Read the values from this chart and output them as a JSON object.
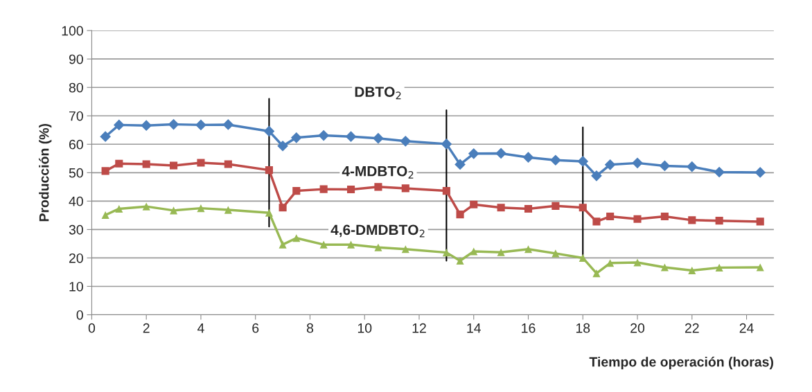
{
  "chart_data": {
    "type": "line",
    "xlabel": "Tiempo de operación (horas)",
    "ylabel": "Producción (%)",
    "x": [
      0.5,
      1,
      2,
      3,
      4,
      5,
      6.5,
      7,
      7.5,
      8.5,
      9.5,
      10.5,
      11.5,
      13,
      13.5,
      14,
      15,
      16,
      17,
      18,
      18.5,
      19,
      20,
      21,
      22,
      23,
      24.5
    ],
    "series": [
      {
        "name": "DBTO$_{2}$",
        "color": "#4a7ebb",
        "marker": "diamond",
        "values": [
          62.7,
          66.8,
          66.6,
          67.0,
          66.8,
          66.9,
          64.6,
          59.4,
          62.3,
          63.1,
          62.7,
          62.1,
          61.1,
          60.1,
          52.9,
          56.7,
          56.8,
          55.4,
          54.4,
          54.0,
          48.9,
          52.8,
          53.4,
          52.4,
          52.1,
          50.2,
          50.1
        ]
      },
      {
        "name": "4-MDBTO$_{2}$",
        "color": "#be4b48",
        "marker": "square",
        "values": [
          50.6,
          53.2,
          53.0,
          52.5,
          53.5,
          53.0,
          50.9,
          37.7,
          43.6,
          44.2,
          44.1,
          45.0,
          44.5,
          43.6,
          35.3,
          38.8,
          37.7,
          37.3,
          38.3,
          37.7,
          32.8,
          34.6,
          33.7,
          34.6,
          33.3,
          33.1,
          32.8
        ]
      },
      {
        "name": "4,6-DMDBTO$_{2}$",
        "color": "#98b954",
        "marker": "triangle",
        "values": [
          35.1,
          37.3,
          38.1,
          36.7,
          37.5,
          36.9,
          35.9,
          24.7,
          27.0,
          24.7,
          24.7,
          23.7,
          23.1,
          21.9,
          19.0,
          22.3,
          22.0,
          23.1,
          21.6,
          20.0,
          14.6,
          18.2,
          18.4,
          16.7,
          15.6,
          16.6,
          16.7
        ]
      }
    ],
    "ref_lines": [
      {
        "axis": "x",
        "value": 6.5,
        "color": "#000000"
      },
      {
        "axis": "x",
        "value": 13,
        "color": "#000000"
      },
      {
        "axis": "x",
        "value": 18,
        "color": "#000000"
      }
    ],
    "xlim": [
      0,
      25
    ],
    "xticks": [
      0,
      2,
      4,
      6,
      8,
      10,
      12,
      14,
      16,
      18,
      20,
      22,
      24
    ],
    "ylim": [
      0,
      100
    ],
    "yticks": [
      0,
      10,
      20,
      30,
      40,
      50,
      60,
      70,
      80,
      90,
      100
    ],
    "grid": "y",
    "legend": false,
    "line_style": "solid"
  }
}
